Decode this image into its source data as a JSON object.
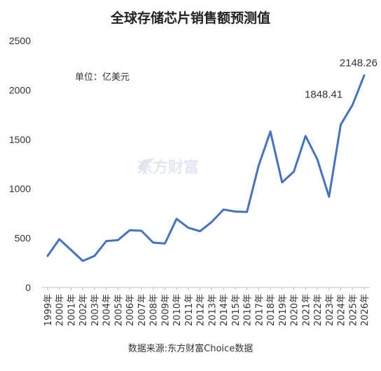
{
  "chart_data": {
    "type": "line",
    "title": "全球存储芯片销售额预测值",
    "unit_note": "单位：亿美元",
    "source": "数据来源:东方财富Choice数据",
    "watermark": "东方财富",
    "categories": [
      "1999年",
      "2000年",
      "2001年",
      "2002年",
      "2003年",
      "2004年",
      "2005年",
      "2006年",
      "2007年",
      "2008年",
      "2009年",
      "2010年",
      "2011年",
      "2012年",
      "2013年",
      "2014年",
      "2015年",
      "2016年",
      "2017年",
      "2018年",
      "2019年",
      "2020年",
      "2021年",
      "2022年",
      "2023年",
      "2024年",
      "2025年",
      "2026年"
    ],
    "series": [
      {
        "values": [
          320,
          490,
          380,
          270,
          320,
          470,
          480,
          580,
          575,
          455,
          445,
          695,
          605,
          570,
          665,
          790,
          770,
          765,
          1235,
          1580,
          1065,
          1175,
          1535,
          1300,
          920,
          1650,
          1848.41,
          2148.26
        ],
        "color": "#4472c4"
      }
    ],
    "data_labels": [
      {
        "index": 26,
        "text": "1848.41"
      },
      {
        "index": 27,
        "text": "2148.26"
      }
    ],
    "yticks": [
      "0",
      "500",
      "1000",
      "1500",
      "2000",
      "2500"
    ],
    "ylim": [
      0,
      2500
    ],
    "grid": false,
    "legend": "none"
  }
}
